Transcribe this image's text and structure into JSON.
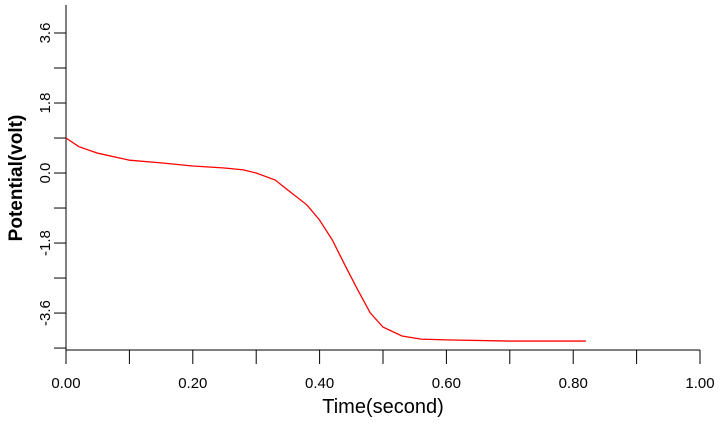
{
  "chart_data": {
    "type": "line",
    "x_label": "Time(second)",
    "y_label": "Potential(volt)",
    "x": [
      0,
      0.02,
      0.05,
      0.1,
      0.15,
      0.2,
      0.25,
      0.28,
      0.3,
      0.33,
      0.35,
      0.38,
      0.4,
      0.42,
      0.44,
      0.46,
      0.48,
      0.5,
      0.53,
      0.56,
      0.6,
      0.7,
      0.82
    ],
    "series": [
      {
        "color": "#ff0000",
        "values": [
          0.9,
          0.68,
          0.51,
          0.33,
          0.26,
          0.18,
          0.13,
          0.08,
          0,
          -0.18,
          -0.44,
          -0.82,
          -1.21,
          -1.72,
          -2.37,
          -3.0,
          -3.6,
          -3.96,
          -4.19,
          -4.27,
          -4.29,
          -4.32,
          -4.32
        ]
      }
    ],
    "xlim": [
      0,
      1
    ],
    "xticks": [
      {
        "value": 0,
        "label": "0.00"
      },
      {
        "value": 0.2,
        "label": "0.20"
      },
      {
        "value": 0.4,
        "label": "0.40"
      },
      {
        "value": 0.6,
        "label": "0.60"
      },
      {
        "value": 0.8,
        "label": "0.80"
      },
      {
        "value": 1,
        "label": "1.00"
      }
    ],
    "x_minor_ticks": [
      0.1,
      0.3,
      0.5,
      0.7,
      0.9
    ],
    "ylim": [
      -4.55,
      4.32
    ],
    "yticks": [
      -3.6,
      -1.8,
      {
        "value": 0,
        "label": "0.0"
      },
      1.8,
      3.6
    ],
    "y_minor_ticks": [
      -4.5,
      -2.7,
      -0.9,
      0.9,
      2.7
    ],
    "grid": false
  }
}
